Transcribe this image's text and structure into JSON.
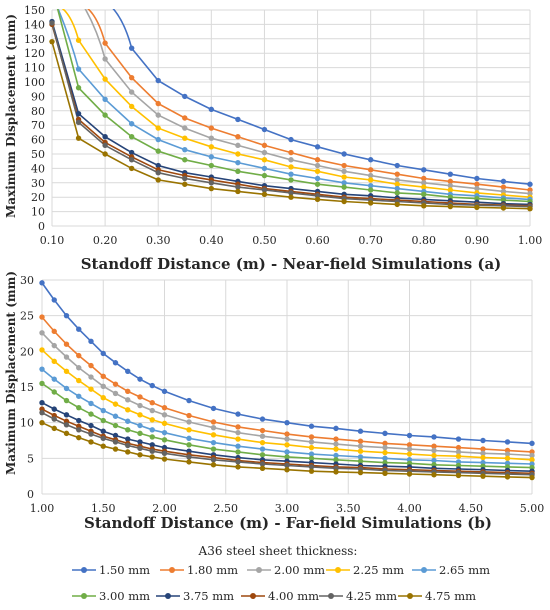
{
  "legend": {
    "title": "A36 steel sheet thickness:"
  },
  "series_colors": [
    "#4472C4",
    "#ED7D31",
    "#A5A5A5",
    "#FFC000",
    "#5B9BD5",
    "#70AD47",
    "#264478",
    "#9E480E",
    "#636363",
    "#997300"
  ],
  "chart_data": [
    {
      "type": "line",
      "xlabel": "Standoff Distance (m) - Near-field Simulations (a)",
      "ylabel": "Maximum Displacement (mm)",
      "xlim": [
        0.1,
        1.0
      ],
      "ylim": [
        0,
        150
      ],
      "xticks": [
        "0.10",
        "0.20",
        "0.30",
        "0.40",
        "0.50",
        "0.60",
        "0.70",
        "0.80",
        "0.90",
        "1.00"
      ],
      "yticks": [
        "0",
        "10",
        "20",
        "30",
        "40",
        "50",
        "60",
        "70",
        "80",
        "90",
        "100",
        "110",
        "120",
        "130",
        "140",
        "150"
      ],
      "grid": true,
      "x": [
        0.1,
        0.15,
        0.2,
        0.25,
        0.3,
        0.35,
        0.4,
        0.45,
        0.5,
        0.55,
        0.6,
        0.65,
        0.7,
        0.75,
        0.8,
        0.85,
        0.9,
        0.95,
        1.0
      ],
      "series": [
        {
          "name": "1.50 mm",
          "values": [
            null,
            null,
            null,
            123.5,
            101,
            90,
            81,
            74,
            67,
            60,
            55,
            50,
            46,
            42,
            39,
            36,
            33,
            31,
            29
          ]
        },
        {
          "name": "1.80 mm",
          "values": [
            null,
            null,
            127,
            103,
            85,
            75,
            68,
            62,
            56,
            51,
            46,
            42,
            39,
            36,
            33,
            31,
            29,
            27,
            25
          ]
        },
        {
          "name": "2.00 mm",
          "values": [
            null,
            null,
            116,
            93,
            77,
            68,
            61,
            56,
            51,
            46,
            42,
            38,
            35,
            32,
            30,
            28,
            26,
            24,
            22.5
          ]
        },
        {
          "name": "2.25 mm",
          "values": [
            null,
            129,
            102,
            83,
            68,
            61,
            55,
            50,
            46,
            41,
            38,
            34,
            32,
            29,
            27,
            25,
            23,
            21.5,
            20
          ]
        },
        {
          "name": "2.65 mm",
          "values": [
            null,
            109,
            88,
            71,
            60,
            53,
            48,
            44,
            40,
            36,
            33,
            30,
            28,
            26,
            24,
            22,
            21,
            19.5,
            18.5
          ]
        },
        {
          "name": "3.00 mm",
          "values": [
            null,
            96,
            77,
            62,
            52,
            46,
            42,
            38,
            35,
            32,
            29,
            27,
            25,
            23,
            22,
            20,
            19,
            18,
            17
          ]
        },
        {
          "name": "3.75 mm",
          "values": [
            142,
            78,
            62,
            51,
            42,
            37,
            34,
            31,
            28,
            26,
            24,
            22,
            21,
            19.5,
            18.5,
            17.5,
            16.5,
            15.5,
            15
          ]
        },
        {
          "name": "4.00 mm",
          "values": [
            140,
            74,
            58,
            48,
            39,
            35,
            32,
            29,
            26,
            24,
            22,
            20,
            19,
            18,
            17,
            16,
            15,
            14.5,
            14
          ]
        },
        {
          "name": "4.25 mm",
          "values": [
            141,
            72,
            56,
            46,
            37,
            33,
            30,
            27,
            25,
            23,
            21,
            19,
            18,
            17,
            16,
            15,
            14.5,
            14,
            13.5
          ]
        },
        {
          "name": "4.75 mm",
          "values": [
            128,
            61,
            50,
            40,
            32,
            29,
            26,
            24,
            22,
            20,
            18.5,
            17,
            16,
            15,
            14,
            13.5,
            13,
            12.5,
            12
          ]
        }
      ]
    },
    {
      "type": "line",
      "xlabel": "Standoff Distance (m) - Far-field Simulations (b)",
      "ylabel": "Maximum Displacement (mm)",
      "xlim": [
        1.0,
        5.0
      ],
      "ylim": [
        0,
        30
      ],
      "xticks": [
        "1.00",
        "1.50",
        "2.00",
        "2.50",
        "3.00",
        "3.50",
        "4.00",
        "4.50",
        "5.00"
      ],
      "yticks": [
        "0",
        "5",
        "10",
        "15",
        "20",
        "25",
        "30"
      ],
      "grid": true,
      "x": [
        1.0,
        1.1,
        1.2,
        1.3,
        1.4,
        1.5,
        1.6,
        1.7,
        1.8,
        1.9,
        2.0,
        2.2,
        2.4,
        2.6,
        2.8,
        3.0,
        3.2,
        3.4,
        3.6,
        3.8,
        4.0,
        4.2,
        4.4,
        4.6,
        4.8,
        5.0
      ],
      "series": [
        {
          "name": "1.50 mm",
          "values": [
            29.6,
            27.2,
            25,
            23.1,
            21.4,
            19.7,
            18.4,
            17.2,
            16.1,
            15.2,
            14.4,
            13.1,
            12,
            11.2,
            10.5,
            10,
            9.5,
            9.2,
            8.8,
            8.5,
            8.2,
            8,
            7.7,
            7.5,
            7.3,
            7.1
          ]
        },
        {
          "name": "1.80 mm",
          "values": [
            24.8,
            22.8,
            21,
            19.4,
            18,
            16.5,
            15.4,
            14.4,
            13.6,
            12.8,
            12.1,
            11,
            10.1,
            9.4,
            8.9,
            8.4,
            8,
            7.7,
            7.4,
            7.1,
            6.9,
            6.7,
            6.5,
            6.3,
            6.1,
            5.9
          ]
        },
        {
          "name": "2.00 mm",
          "values": [
            22.6,
            20.8,
            19.2,
            17.7,
            16.4,
            15.1,
            14.1,
            13.2,
            12.4,
            11.7,
            11.1,
            10.1,
            9.3,
            8.6,
            8.1,
            7.7,
            7.3,
            7,
            6.7,
            6.5,
            6.3,
            6.1,
            5.9,
            5.7,
            5.6,
            5.4
          ]
        },
        {
          "name": "2.25 mm",
          "values": [
            20.2,
            18.6,
            17.2,
            15.9,
            14.7,
            13.5,
            12.6,
            11.8,
            11.1,
            10.4,
            9.9,
            9,
            8.3,
            7.7,
            7.2,
            6.9,
            6.5,
            6.3,
            6,
            5.8,
            5.6,
            5.4,
            5.3,
            5.1,
            5,
            4.8
          ]
        },
        {
          "name": "2.65 mm",
          "values": [
            17.5,
            16.1,
            14.8,
            13.7,
            12.7,
            11.7,
            10.9,
            10.2,
            9.6,
            9,
            8.6,
            7.8,
            7.2,
            6.7,
            6.3,
            5.9,
            5.6,
            5.4,
            5.2,
            5,
            4.8,
            4.7,
            4.5,
            4.4,
            4.3,
            4.2
          ]
        },
        {
          "name": "3.00 mm",
          "values": [
            15.5,
            14.3,
            13.1,
            12.1,
            11.2,
            10.3,
            9.6,
            9,
            8.5,
            8,
            7.6,
            6.9,
            6.3,
            5.9,
            5.5,
            5.2,
            5,
            4.8,
            4.6,
            4.4,
            4.3,
            4.1,
            4,
            3.9,
            3.8,
            3.7
          ]
        },
        {
          "name": "3.75 mm",
          "values": [
            12.8,
            11.9,
            11.1,
            10.3,
            9.6,
            8.8,
            8.2,
            7.7,
            7.3,
            6.9,
            6.5,
            6,
            5.5,
            5.1,
            4.8,
            4.6,
            4.4,
            4.2,
            4,
            3.9,
            3.8,
            3.6,
            3.5,
            3.4,
            3.3,
            3.2
          ]
        },
        {
          "name": "4.00 mm",
          "values": [
            11.9,
            11,
            10.2,
            9.5,
            8.8,
            8.1,
            7.6,
            7.1,
            6.7,
            6.3,
            6,
            5.5,
            5.1,
            4.7,
            4.4,
            4.2,
            4,
            3.8,
            3.7,
            3.5,
            3.4,
            3.3,
            3.2,
            3.1,
            3,
            2.9
          ]
        },
        {
          "name": "4.25 mm",
          "values": [
            11.4,
            10.5,
            9.7,
            9,
            8.4,
            7.8,
            7.3,
            6.8,
            6.4,
            6,
            5.7,
            5.2,
            4.8,
            4.5,
            4.2,
            4,
            3.8,
            3.6,
            3.5,
            3.3,
            3.2,
            3.1,
            3,
            2.9,
            2.8,
            2.7
          ]
        },
        {
          "name": "4.75 mm",
          "values": [
            10,
            9.2,
            8.5,
            7.9,
            7.3,
            6.7,
            6.3,
            5.9,
            5.5,
            5.2,
            4.9,
            4.5,
            4.1,
            3.8,
            3.6,
            3.4,
            3.2,
            3.1,
            3,
            2.9,
            2.8,
            2.7,
            2.6,
            2.5,
            2.4,
            2.3
          ]
        }
      ]
    }
  ]
}
